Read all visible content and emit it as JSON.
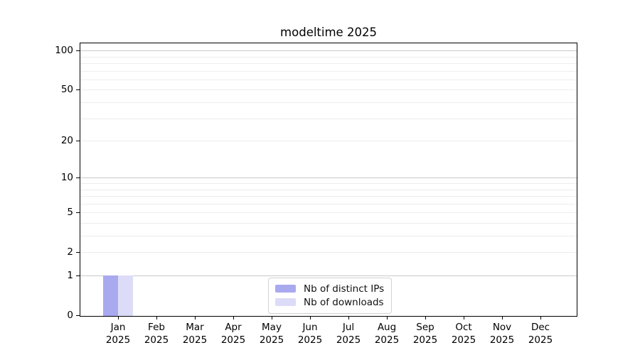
{
  "chart_data": {
    "type": "bar",
    "title": "modeltime 2025",
    "months": [
      "Jan",
      "Feb",
      "Mar",
      "Apr",
      "May",
      "Jun",
      "Jul",
      "Aug",
      "Sep",
      "Oct",
      "Nov",
      "Dec"
    ],
    "year": "2025",
    "series": [
      {
        "name": "Nb of distinct IPs",
        "color": "#a9a9f0",
        "values": [
          1,
          0,
          0,
          0,
          0,
          0,
          0,
          0,
          0,
          0,
          0,
          0
        ]
      },
      {
        "name": "Nb of downloads",
        "color": "#dcdcf8",
        "values": [
          1,
          0,
          0,
          0,
          0,
          0,
          0,
          0,
          0,
          0,
          0,
          0
        ]
      }
    ],
    "y_scale": "log1p",
    "y_tick_labels": [
      "0",
      "1",
      "2",
      "5",
      "10",
      "20",
      "50",
      "100"
    ],
    "y_ticks": [
      0,
      1,
      2,
      5,
      10,
      20,
      50,
      100
    ],
    "y_major_gridlines": [
      1,
      10,
      100
    ],
    "y_minor_gridlines": [
      2,
      3,
      4,
      5,
      6,
      7,
      8,
      9,
      20,
      30,
      40,
      50,
      60,
      70,
      80,
      90
    ],
    "ylim": [
      0,
      113
    ],
    "grid": true,
    "legend_position": "lower center"
  },
  "colors": {
    "background": "#ffffff",
    "frame": "#000000",
    "major_grid": "#c9c9c9",
    "minor_grid": "#ededed",
    "legend_border": "#d2d2d2",
    "bar_distinct_ips": "#a9a9f0",
    "bar_downloads": "#dcdcf8"
  }
}
